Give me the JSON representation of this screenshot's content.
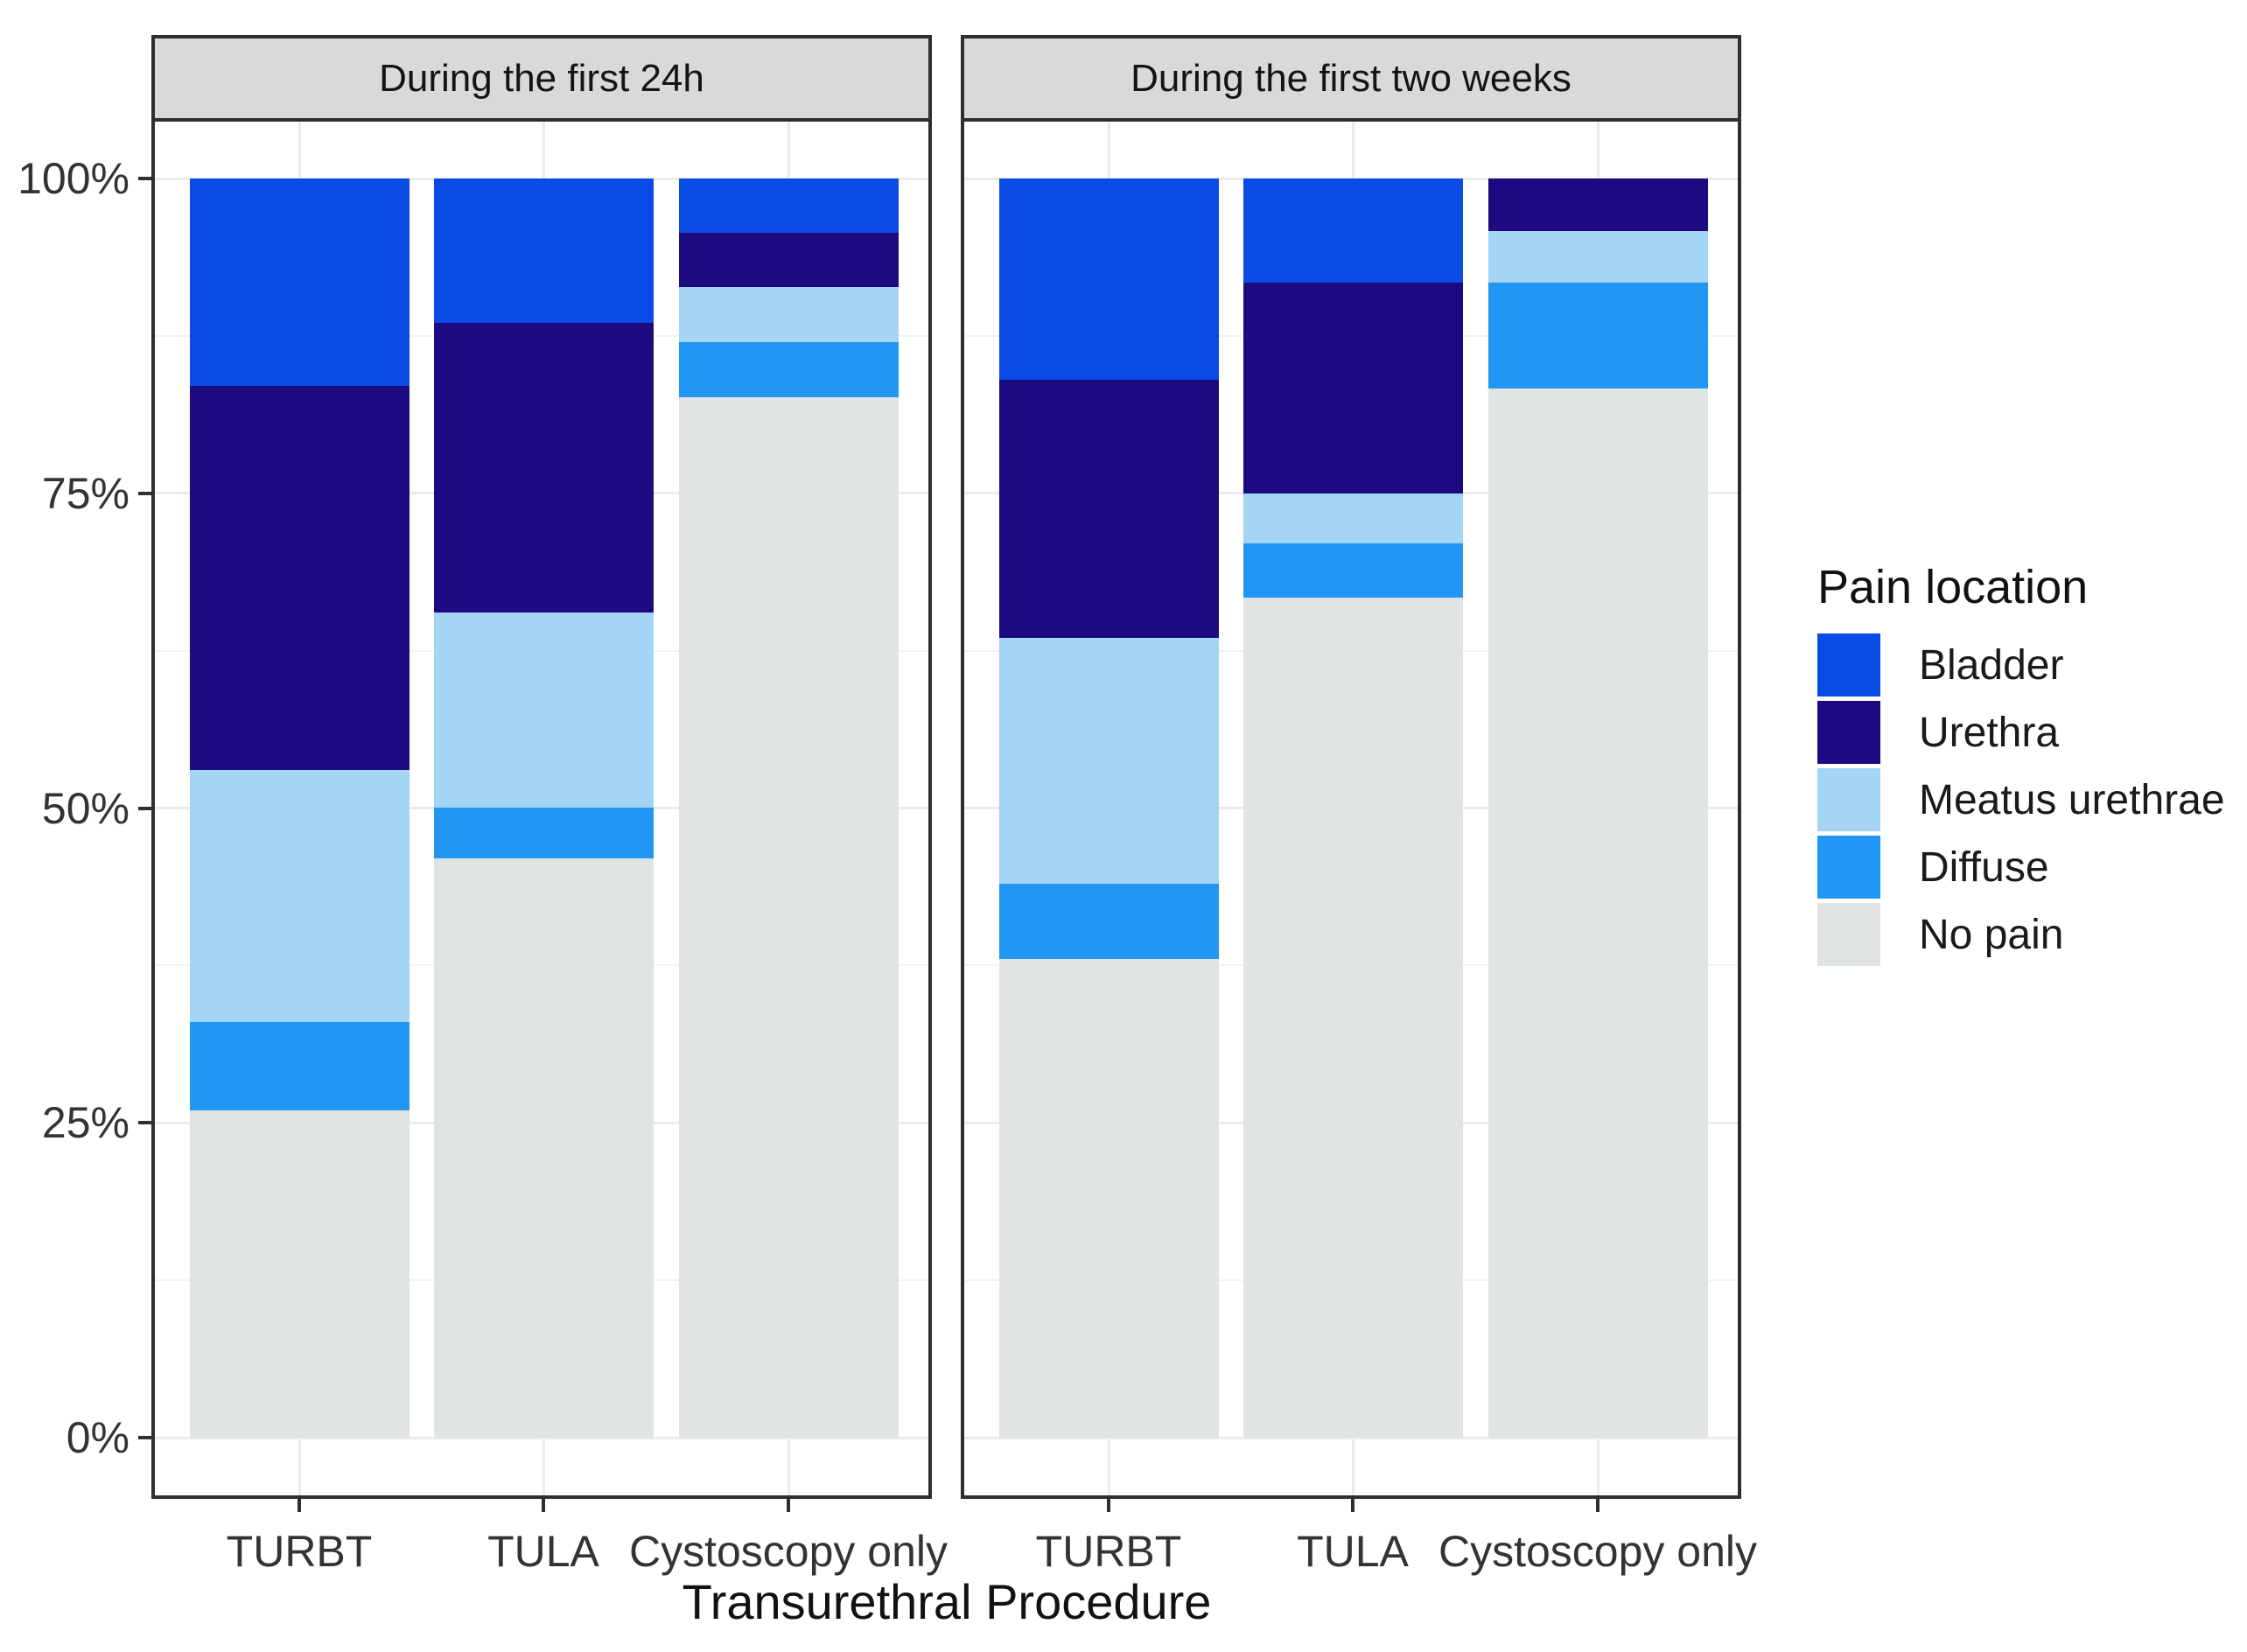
{
  "chart_data": {
    "type": "bar",
    "stacked": true,
    "unit": "percent",
    "xlabel": "Transurethral Procedure",
    "ylabel": "",
    "grid": true,
    "y_axis": {
      "range": [
        0,
        100
      ],
      "tick_labels": [
        "0%",
        "25%",
        "50%",
        "75%",
        "100%"
      ],
      "tick_values": [
        0,
        25,
        50,
        75,
        100
      ],
      "minor_tick_values": [
        12.5,
        37.5,
        62.5,
        87.5
      ]
    },
    "categories": [
      "TURBT",
      "TULA",
      "Cystoscopy only"
    ],
    "facets": [
      {
        "label": "During the first 24h",
        "categories": [
          "TURBT",
          "TULA",
          "Cystoscopy only"
        ],
        "series": [
          {
            "name": "Bladder",
            "values": [
              16.5,
              11.5,
              4.3
            ]
          },
          {
            "name": "Urethra",
            "values": [
              30.5,
              23.0,
              4.3
            ]
          },
          {
            "name": "Meatus urethrae",
            "values": [
              20.0,
              15.5,
              4.4
            ]
          },
          {
            "name": "Diffuse",
            "values": [
              7.0,
              4.0,
              4.4
            ]
          },
          {
            "name": "No pain",
            "values": [
              26.0,
              46.0,
              82.6
            ]
          }
        ]
      },
      {
        "label": "During the first two weeks",
        "categories": [
          "TURBT",
          "TULA",
          "Cystoscopy only"
        ],
        "series": [
          {
            "name": "Bladder",
            "values": [
              16.0,
              8.3,
              0.0
            ]
          },
          {
            "name": "Urethra",
            "values": [
              20.5,
              16.7,
              4.2
            ]
          },
          {
            "name": "Meatus urethrae",
            "values": [
              19.5,
              4.0,
              4.1
            ]
          },
          {
            "name": "Diffuse",
            "values": [
              6.0,
              4.3,
              8.4
            ]
          },
          {
            "name": "No pain",
            "values": [
              38.0,
              66.7,
              83.3
            ]
          }
        ]
      }
    ],
    "legend": {
      "title": "Pain location",
      "position": "right",
      "items": [
        {
          "label": "Bladder",
          "color": "#0A4BE6"
        },
        {
          "label": "Urethra",
          "color": "#1D0A80"
        },
        {
          "label": "Meatus urethrae",
          "color": "#A5D5F5"
        },
        {
          "label": "Diffuse",
          "color": "#2196F3"
        },
        {
          "label": "No pain",
          "color": "#E1E4E4"
        }
      ]
    },
    "style": {
      "strip_background": "#D9D9D9",
      "panel_border": "#2F2F2F",
      "major_gridline": "#EBEBEB",
      "minor_gridline": "#F3F3F3",
      "axis_text": "#333333"
    }
  }
}
